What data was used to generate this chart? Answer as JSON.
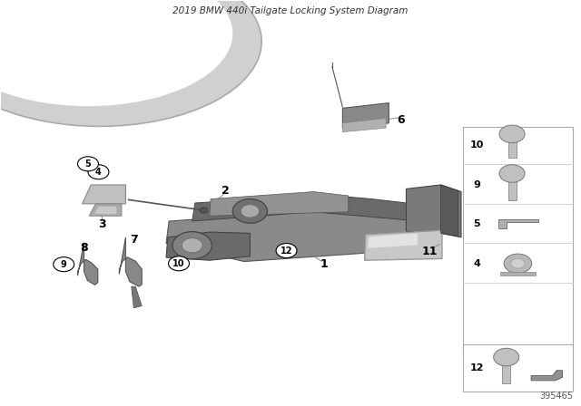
{
  "title": "2019 BMW 440i Tailgate Locking System Diagram",
  "background_color": "#ffffff",
  "part_number": "395465",
  "fig_width": 6.4,
  "fig_height": 4.48,
  "dpi": 100
}
